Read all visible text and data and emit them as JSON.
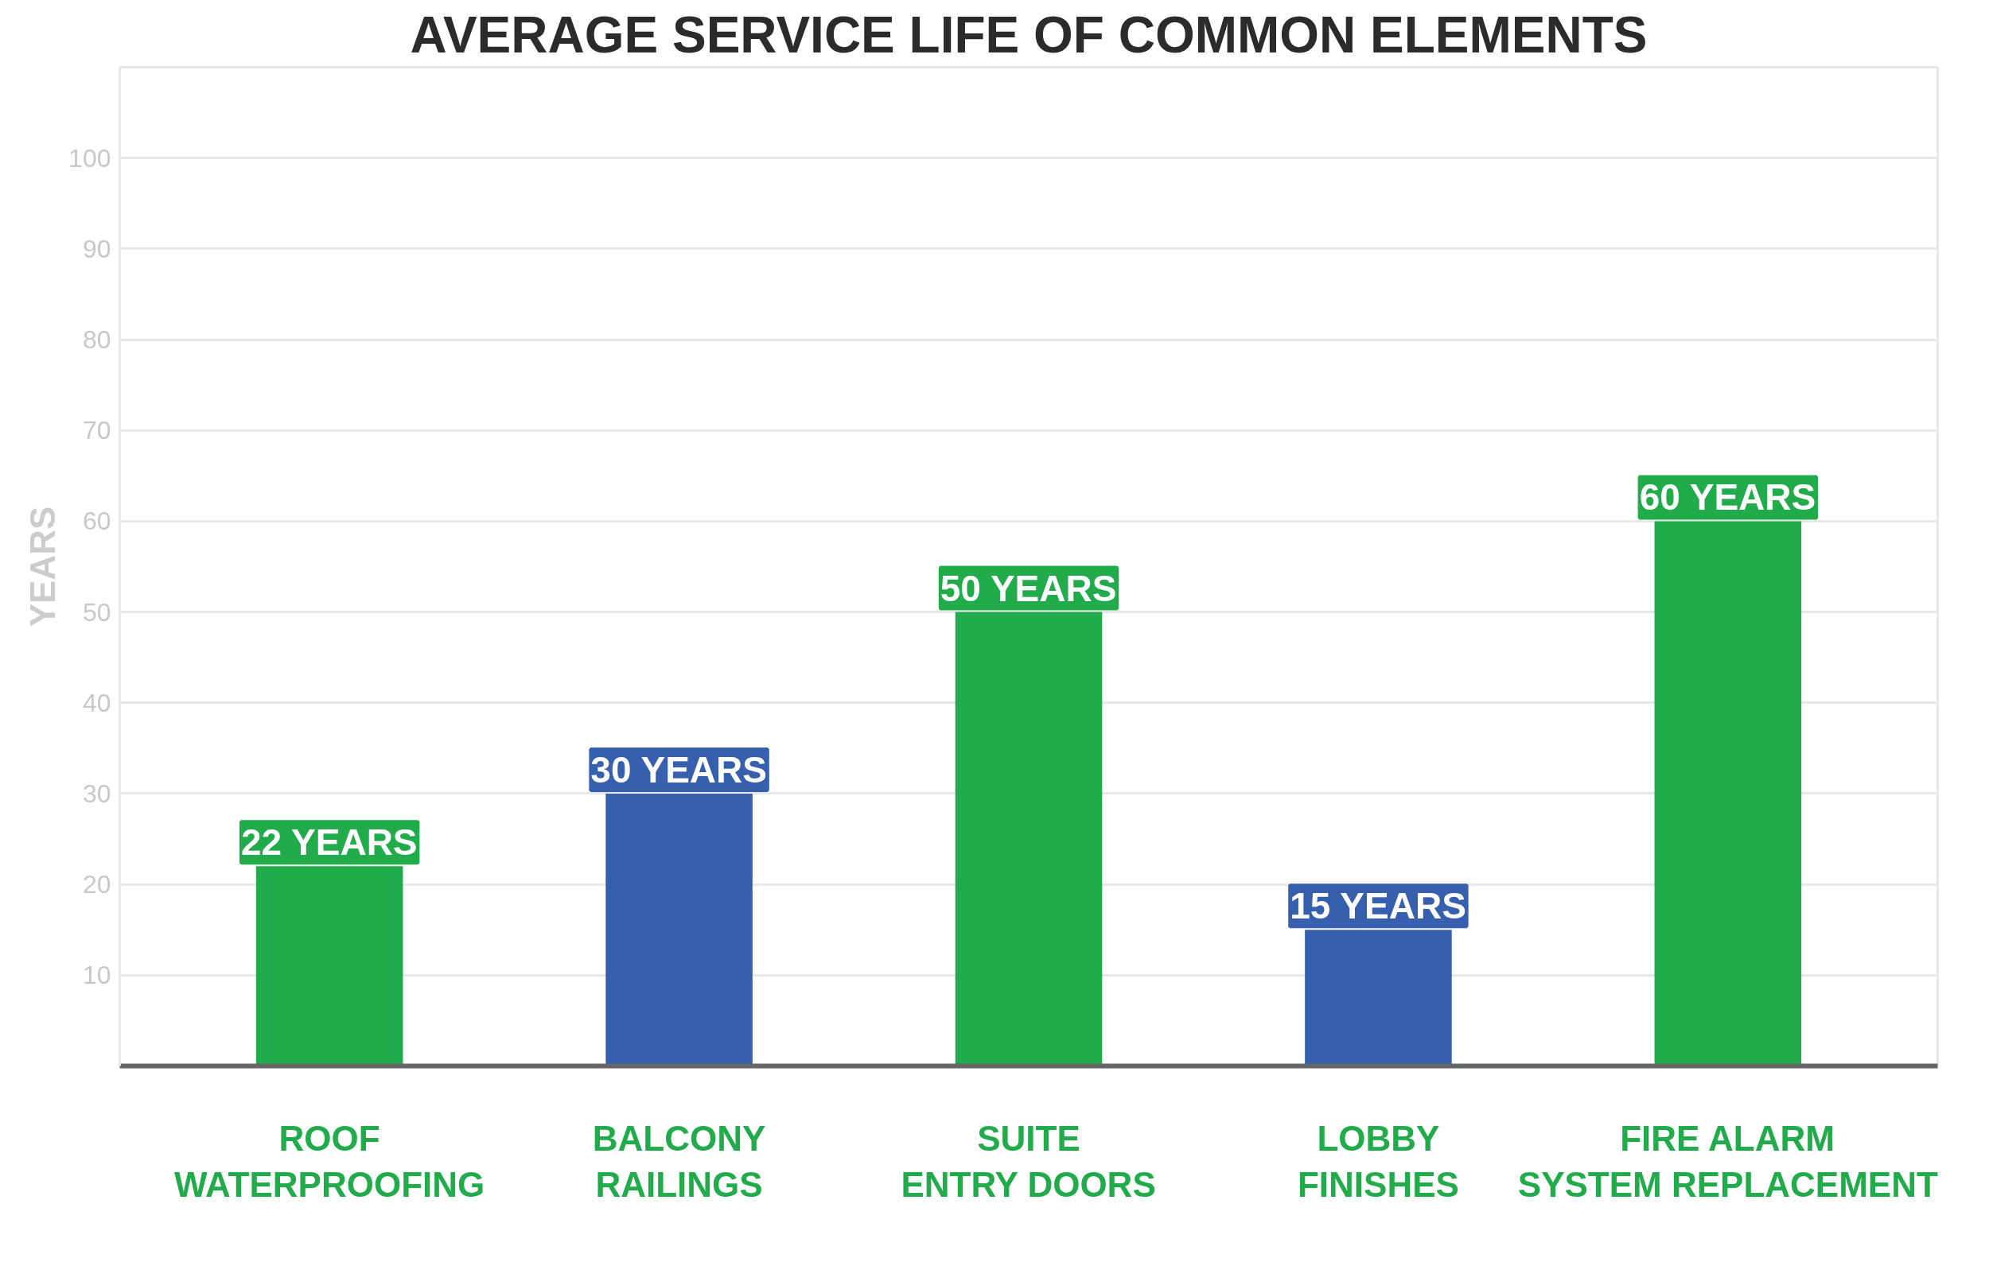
{
  "chart_data": {
    "type": "bar",
    "title": "AVERAGE SERVICE LIFE OF COMMON ELEMENTS",
    "ylabel": "YEARS",
    "categories": [
      "ROOF\nWATERPROOFING",
      "BALCONY\nRAILINGS",
      "SUITE\nENTRY DOORS",
      "LOBBY\nFINISHES",
      "FIRE ALARM\nSYSTEM REPLACEMENT"
    ],
    "values": [
      22,
      30,
      50,
      15,
      60
    ],
    "colors": [
      "#22ab4a",
      "#365fad",
      "#22ab4a",
      "#365fad",
      "#22ab4a"
    ],
    "value_labels": [
      "22 YEARS",
      "30 YEARS",
      "50 YEARS",
      "15 YEARS",
      "60 YEARS"
    ],
    "ylim": [
      0,
      110
    ],
    "yticks": [
      10,
      20,
      30,
      40,
      50,
      60,
      70,
      80,
      90,
      100,
      {
        "value": 110,
        "label": null
      }
    ],
    "grid": "y"
  }
}
